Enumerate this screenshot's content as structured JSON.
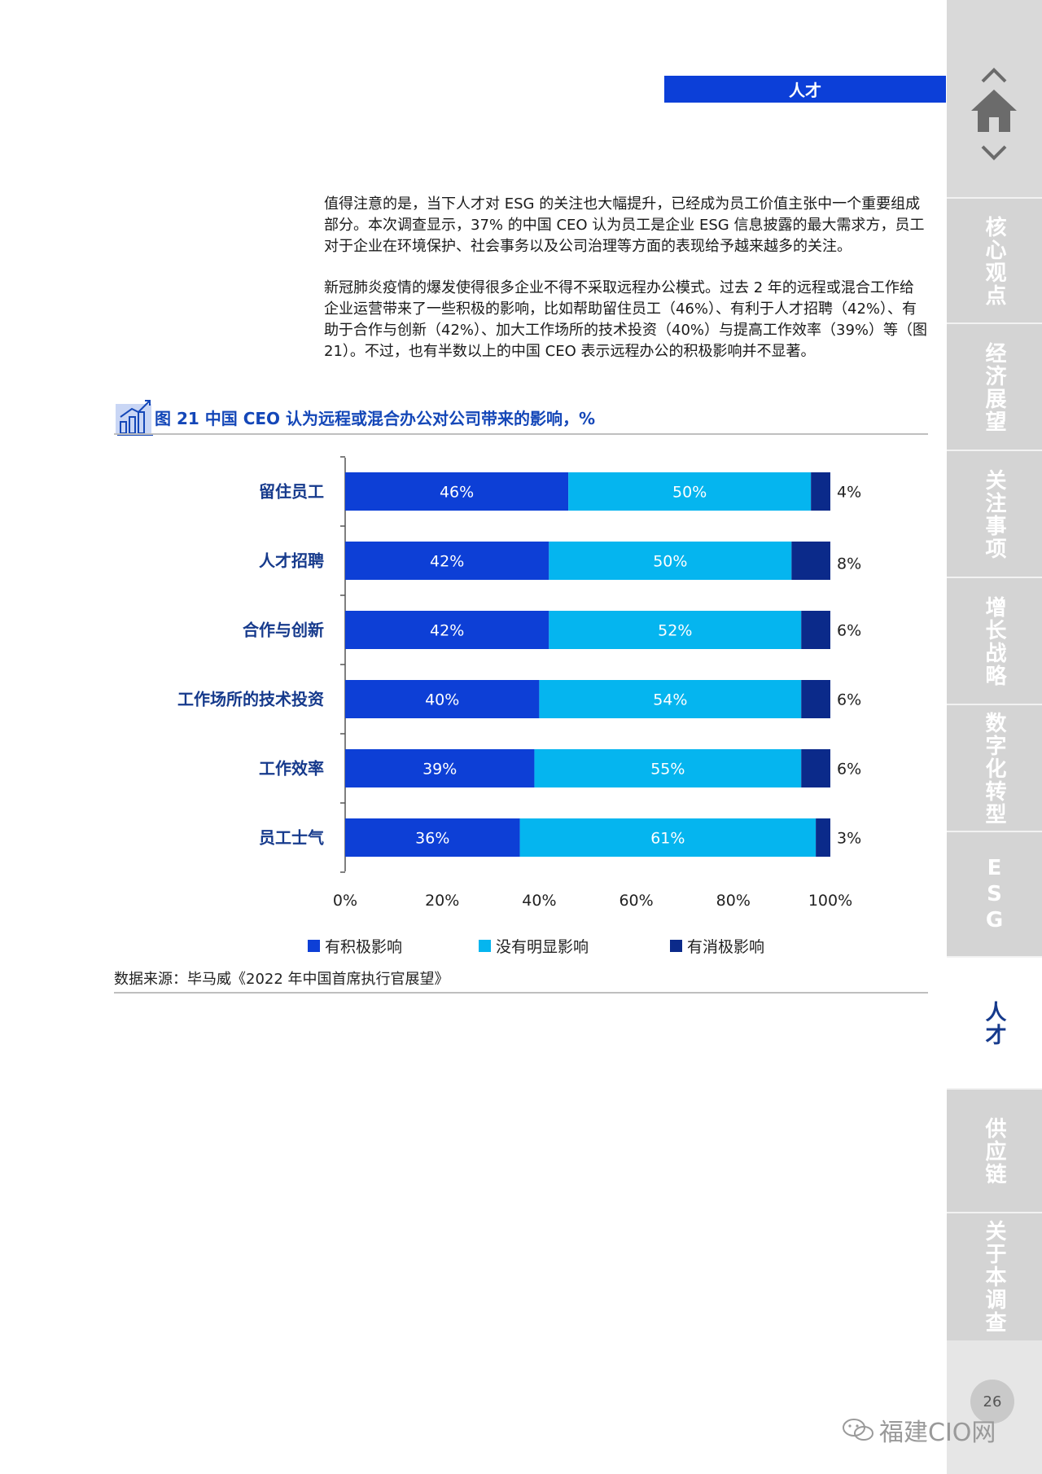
{
  "header": {
    "section_tag": "人才"
  },
  "paragraphs": [
    "值得注意的是，当下人才对 ESG 的关注也大幅提升，已经成为员工价值主张中一个重要组成部分。本次调查显示，37% 的中国 CEO 认为员工是企业 ESG 信息披露的最大需求方，员工对于企业在环境保护、社会事务以及公司治理等方面的表现给予越来越多的关注。",
    "新冠肺炎疫情的爆发使得很多企业不得不采取远程办公模式。过去 2 年的远程或混合工作给企业运营带来了一些积极的影响，比如帮助留住员工（46%）、有利于人才招聘（42%）、有助于合作与创新（42%）、加大工作场所的技术投资（40%）与提高工作效率（39%）等（图 21）。不过，也有半数以上的中国 CEO 表示远程办公的积极影响并不显著。"
  ],
  "figure": {
    "title": "图 21  中国 CEO 认为远程或混合办公对公司带来的影响，%",
    "source": "数据来源：毕马威《2022 年中国首席执行官展望》"
  },
  "chart_data": {
    "type": "bar",
    "orientation": "horizontal",
    "stacked": true,
    "title": "图 21  中国 CEO 认为远程或混合办公对公司带来的影响，%",
    "categories": [
      "留住员工",
      "人才招聘",
      "合作与创新",
      "工作场所的技术投资",
      "工作效率",
      "员工士气"
    ],
    "series": [
      {
        "name": "有积极影响",
        "values": [
          46,
          42,
          42,
          40,
          39,
          36
        ],
        "color": "#0d3fd6"
      },
      {
        "name": "没有明显影响",
        "values": [
          50,
          50,
          52,
          54,
          55,
          61
        ],
        "color": "#05b5ef"
      },
      {
        "name": "有消极影响",
        "values": [
          4,
          8,
          6,
          6,
          6,
          3
        ],
        "color": "#0b2a8a"
      }
    ],
    "x_ticks": [
      "0%",
      "20%",
      "40%",
      "60%",
      "80%",
      "100%"
    ],
    "xlim": [
      0,
      100
    ],
    "legend_position": "bottom",
    "grid": false
  },
  "sidebar": {
    "items": [
      {
        "label": "核心观点",
        "active": false
      },
      {
        "label": "经济展望",
        "active": false
      },
      {
        "label": "关注事项",
        "active": false
      },
      {
        "label": "增长战略",
        "active": false
      },
      {
        "label": "数字化转型",
        "active": false
      },
      {
        "label": "ESG",
        "active": false
      },
      {
        "label": "人才",
        "active": true
      },
      {
        "label": "供应链",
        "active": false
      },
      {
        "label": "关于本调查",
        "active": false
      }
    ],
    "page_number": "26"
  },
  "watermark": {
    "text": "福建CIO网"
  },
  "icons": {
    "nav_up": "chevron-up-icon",
    "nav_home": "home-icon",
    "nav_down": "chevron-down-icon",
    "figure": "bar-chart-icon",
    "watermark": "wechat-icon"
  }
}
